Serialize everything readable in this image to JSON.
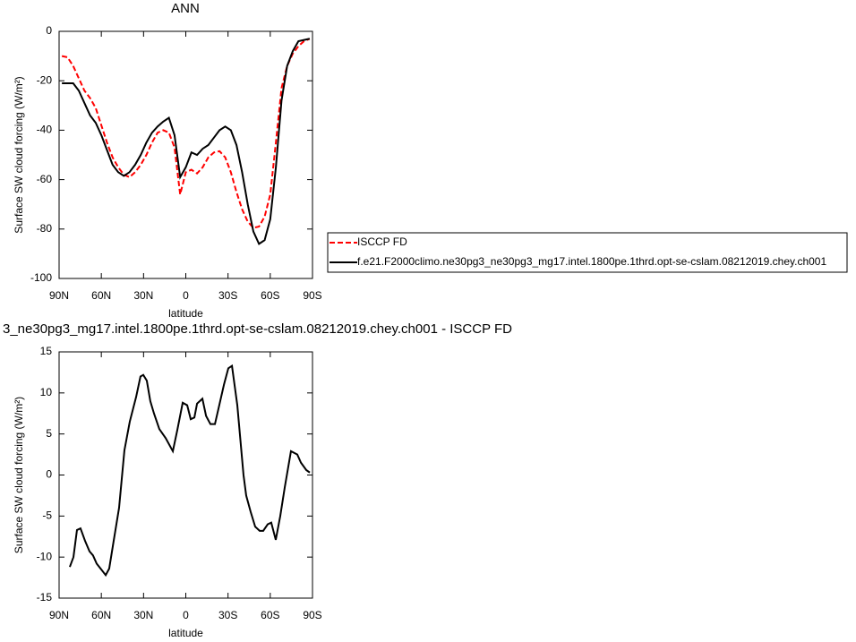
{
  "chart_data": [
    {
      "type": "line",
      "title": "ANN",
      "xlabel": "latitude",
      "ylabel": "Surface SW cloud forcing (W/m²)",
      "x": [
        88,
        84,
        80,
        76,
        72,
        68,
        64,
        60,
        56,
        52,
        48,
        44,
        40,
        36,
        32,
        28,
        24,
        20,
        16,
        12,
        8,
        4,
        0,
        -4,
        -8,
        -12,
        -16,
        -20,
        -24,
        -28,
        -32,
        -36,
        -40,
        -44,
        -48,
        -52,
        -56,
        -60,
        -64,
        -68,
        -72,
        -76,
        -80,
        -84,
        -88
      ],
      "series": [
        {
          "name": "ISCCP FD",
          "color": "#ff0000",
          "line_style": "dashed",
          "values": [
            -10,
            -10.5,
            -14,
            -19,
            -24,
            -27,
            -31,
            -38,
            -45,
            -51,
            -55,
            -58,
            -59,
            -57,
            -54,
            -50,
            -45,
            -41,
            -40,
            -41,
            -47,
            -66,
            -57,
            -56,
            -57.5,
            -55,
            -51,
            -49,
            -48.5,
            -51,
            -57,
            -65,
            -72,
            -77,
            -79.5,
            -79,
            -75,
            -66,
            -45,
            -23,
            -14,
            -9,
            -6,
            -4,
            -3
          ]
        },
        {
          "name": "f.e21.F2000climo.ne30pg3_ne30pg3_mg17.intel.1800pe.1thrd.opt-se-cslam.08212019.chey.ch001",
          "color": "#000000",
          "line_style": "solid",
          "values": [
            -21,
            -21,
            -21,
            -24,
            -29,
            -34,
            -37,
            -42,
            -48,
            -54,
            -57,
            -58.5,
            -57,
            -54,
            -50,
            -45,
            -41,
            -38.5,
            -36.5,
            -35,
            -42,
            -59,
            -55,
            -49,
            -50,
            -47.5,
            -46,
            -43,
            -40,
            -38.5,
            -40,
            -46,
            -57,
            -70,
            -81,
            -86,
            -84.5,
            -76,
            -55,
            -28,
            -14,
            -8,
            -4,
            -3.5,
            -3
          ]
        }
      ],
      "xlim": [
        90,
        -90
      ],
      "xticks": [
        {
          "value": 90,
          "label": "90N"
        },
        {
          "value": 60,
          "label": "60N"
        },
        {
          "value": 30,
          "label": "30N"
        },
        0,
        {
          "value": -30,
          "label": "30S"
        },
        {
          "value": -60,
          "label": "60S"
        },
        {
          "value": -90,
          "label": "90S"
        }
      ],
      "ylim": [
        -100,
        0
      ],
      "yticks": [
        -100,
        -80,
        -60,
        -40,
        -20,
        0
      ],
      "legend": "right"
    },
    {
      "type": "line",
      "title": "3_ne30pg3_mg17.intel.1800pe.1thrd.opt-se-cslam.08212019.chey.ch001 - ISCCP FD",
      "xlabel": "latitude",
      "ylabel": "Surface SW cloud forcing (W/m²)",
      "x": [
        82.4,
        79.8,
        77.3,
        74.8,
        71.6,
        68.4,
        65.9,
        63.3,
        60.1,
        56.9,
        54.4,
        51.2,
        47.4,
        43.6,
        39.8,
        35.3,
        32.2,
        30.2,
        27.7,
        25.2,
        22.6,
        18.8,
        14.3,
        9.2,
        6.0,
        2.2,
        -1.0,
        -3.5,
        -6.1,
        -8.0,
        -11.8,
        -14.4,
        -17.5,
        -20.7,
        -23.9,
        -27.1,
        -30.2,
        -32.8,
        -36.6,
        -41.0,
        -42.9,
        -46.1,
        -49.3,
        -52.5,
        -55.0,
        -58.2,
        -60.7,
        -63.9,
        -67.1,
        -70.3,
        -74.7,
        -79.2,
        -81.8,
        -85.6,
        -88.1
      ],
      "series": [
        {
          "color": "#000000",
          "line_style": "solid",
          "values": [
            -11.2,
            -10,
            -6.7,
            -6.5,
            -8,
            -9.3,
            -9.8,
            -10.8,
            -11.5,
            -12.2,
            -11.4,
            -8,
            -4,
            3,
            6.5,
            9.5,
            12,
            12.2,
            11.5,
            9,
            7.5,
            5.6,
            4.5,
            2.9,
            5.5,
            8.8,
            8.5,
            6.8,
            7,
            8.7,
            9.3,
            7.2,
            6.2,
            6.2,
            8.6,
            11,
            13,
            13.3,
            8.5,
            0,
            -2.5,
            -4.5,
            -6.3,
            -6.8,
            -6.8,
            -6,
            -5.8,
            -7.9,
            -5,
            -1.5,
            2.9,
            2.5,
            1.5,
            0.6,
            0.3
          ]
        }
      ],
      "xlim": [
        90,
        -90
      ],
      "xticks": [
        {
          "value": 90,
          "label": "90N"
        },
        {
          "value": 60,
          "label": "60N"
        },
        {
          "value": 30,
          "label": "30N"
        },
        0,
        {
          "value": -30,
          "label": "30S"
        },
        {
          "value": -60,
          "label": "60S"
        },
        {
          "value": -90,
          "label": "90S"
        }
      ],
      "ylim": [
        -15,
        15
      ],
      "yticks": [
        -15,
        -10,
        -5,
        0,
        5,
        10,
        15
      ]
    }
  ]
}
